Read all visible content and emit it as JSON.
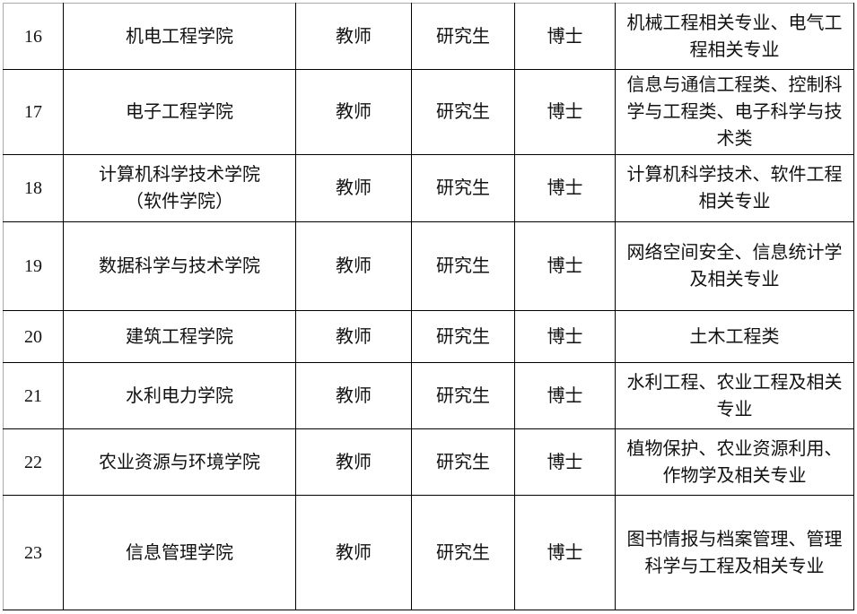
{
  "rows": [
    {
      "no": "16",
      "college": "机电工程学院",
      "post": "教师",
      "degree_level": "研究生",
      "degree": "博士",
      "major": "机械工程相关专业、电气工程相关专业"
    },
    {
      "no": "17",
      "college": "电子工程学院",
      "post": "教师",
      "degree_level": "研究生",
      "degree": "博士",
      "major": "信息与通信工程类、控制科学与工程类、电子科学与技术类"
    },
    {
      "no": "18",
      "college": "计算机科学技术学院（软件学院）",
      "post": "教师",
      "degree_level": "研究生",
      "degree": "博士",
      "major": "计算机科学技术、软件工程相关专业"
    },
    {
      "no": "19",
      "college": "数据科学与技术学院",
      "post": "教师",
      "degree_level": "研究生",
      "degree": "博士",
      "major": "网络空间安全、信息统计学及相关专业"
    },
    {
      "no": "20",
      "college": "建筑工程学院",
      "post": "教师",
      "degree_level": "研究生",
      "degree": "博士",
      "major": "土木工程类"
    },
    {
      "no": "21",
      "college": "水利电力学院",
      "post": "教师",
      "degree_level": "研究生",
      "degree": "博士",
      "major": "水利工程、农业工程及相关专业"
    },
    {
      "no": "22",
      "college": "农业资源与环境学院",
      "post": "教师",
      "degree_level": "研究生",
      "degree": "博士",
      "major": "植物保护、农业资源利用、作物学及相关专业"
    },
    {
      "no": "23",
      "college": "信息管理学院",
      "post": "教师",
      "degree_level": "研究生",
      "degree": "博士",
      "major": "图书情报与档案管理、管理科学与工程及相关专业"
    }
  ]
}
